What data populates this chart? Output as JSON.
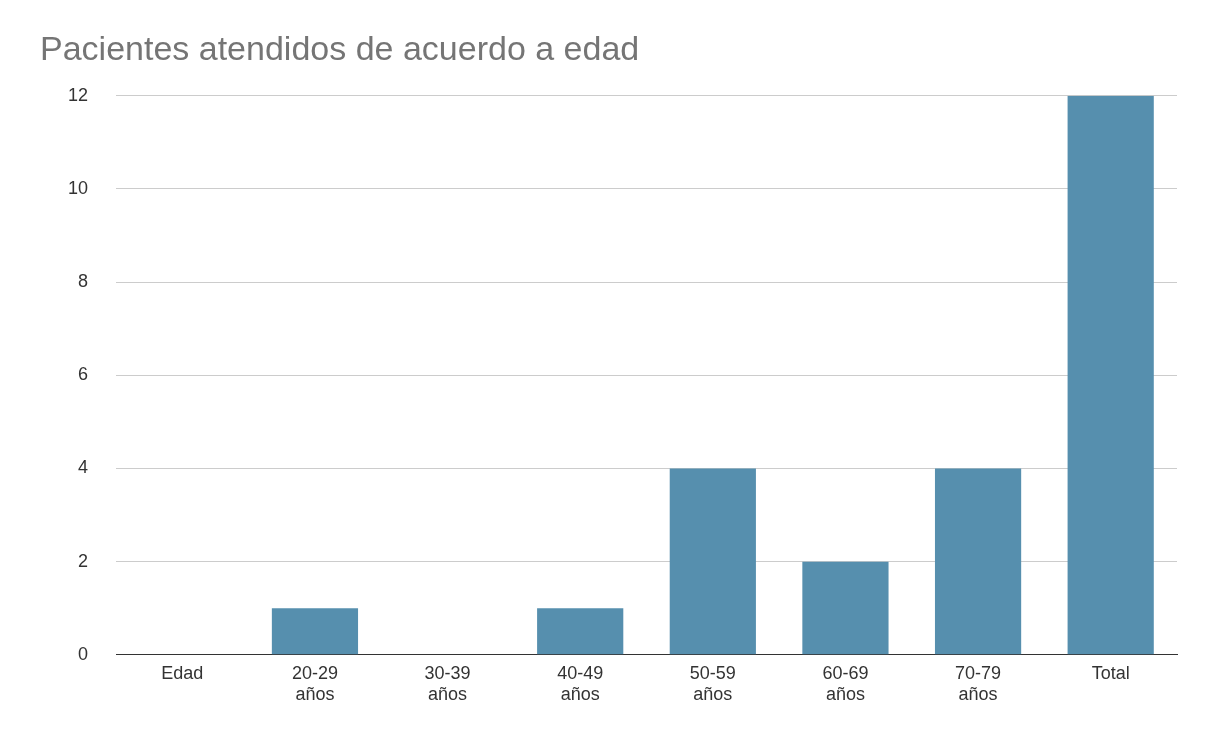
{
  "chart_data": {
    "type": "bar",
    "title": "Pacientes atendidos de acuerdo a edad",
    "categories": [
      "Edad",
      "20-29 años",
      "30-39 años",
      "40-49 años",
      "50-59 años",
      "60-69 años",
      "70-79 años",
      "Total"
    ],
    "values": [
      null,
      1,
      0,
      1,
      4,
      2,
      4,
      12
    ],
    "color": "#568fae",
    "ylim": [
      0,
      12
    ],
    "yticks": [
      0,
      2,
      4,
      6,
      8,
      10,
      12
    ],
    "grid": "y",
    "legend": false
  }
}
